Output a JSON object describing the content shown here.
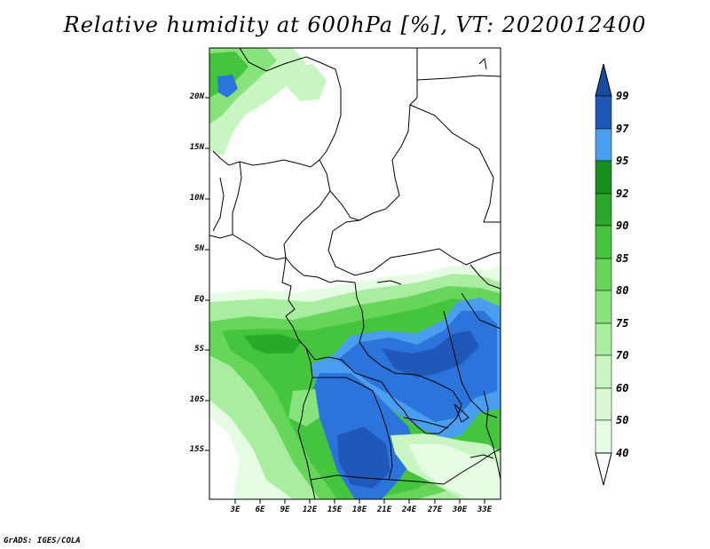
{
  "title": "Relative humidity at 600hPa [%], VT: 2020012400",
  "credit": "GrADS: IGES/COLA",
  "map": {
    "lat_labels": [
      "20N",
      "15N",
      "10N",
      "5N",
      "EQ",
      "5S",
      "10S",
      "15S"
    ],
    "lon_labels": [
      "3E",
      "6E",
      "9E",
      "12E",
      "15E",
      "18E",
      "21E",
      "24E",
      "27E",
      "30E",
      "33E"
    ]
  },
  "colorbar": {
    "levels": [
      "40",
      "50",
      "60",
      "70",
      "75",
      "80",
      "85",
      "90",
      "92",
      "95",
      "97",
      "99"
    ],
    "colors": [
      "#ffffff",
      "#e6fbe3",
      "#c8f5c1",
      "#a9eea0",
      "#88e37c",
      "#66d65b",
      "#45c43e",
      "#2aa82a",
      "#188f1e",
      "#4a9ef0",
      "#2a74dc",
      "#1f58b8",
      "#1a4aa0"
    ]
  }
}
